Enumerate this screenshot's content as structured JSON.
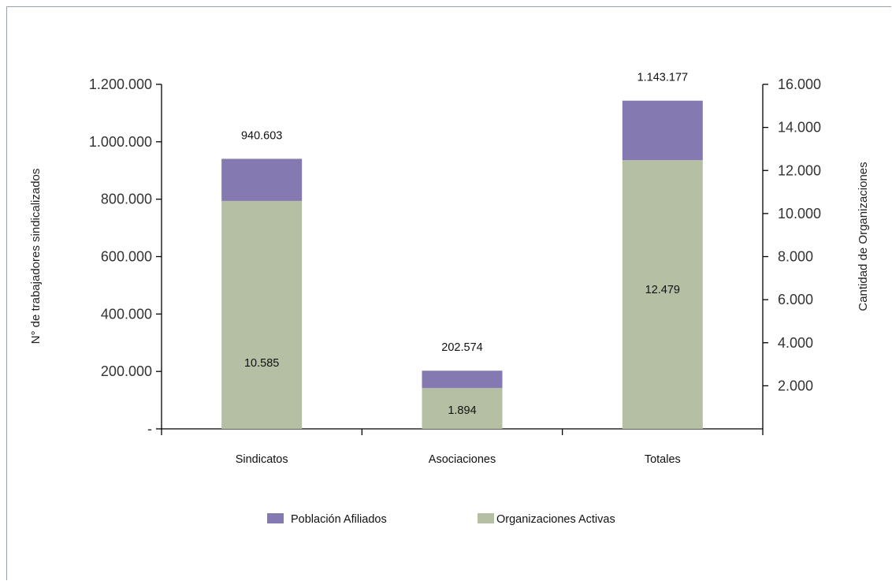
{
  "chart_data": {
    "type": "bar",
    "stacked": true,
    "categories": [
      "Sindicatos",
      "Asociaciones",
      "Totales"
    ],
    "y_left": {
      "label": "N° de trabajadores sindicalizados",
      "range": [
        0,
        1200000
      ],
      "ticks": [
        "-",
        "200.000",
        "400.000",
        "600.000",
        "800.000",
        "1.000.000",
        "1.200.000"
      ]
    },
    "y_right": {
      "label": "Cantidad de Organizaciones",
      "range": [
        0,
        16000
      ],
      "ticks": [
        "2.000",
        "4.000",
        "6.000",
        "8.000",
        "10.000",
        "12.000",
        "14.000",
        "16.000"
      ]
    },
    "series": [
      {
        "name": "Organizaciones Activas",
        "axis": "right",
        "color": "#b4bfa3",
        "values": [
          10585,
          1894,
          12479
        ],
        "labels": [
          "10.585",
          "1.894",
          "12.479"
        ]
      },
      {
        "name": "Población Afiliados",
        "axis": "left",
        "color": "#8479b0",
        "values": [
          940603,
          202574,
          1143177
        ],
        "labels": [
          "940.603",
          "202.574",
          "1.143.177"
        ]
      }
    ],
    "legend_position": "bottom",
    "grid": false
  }
}
